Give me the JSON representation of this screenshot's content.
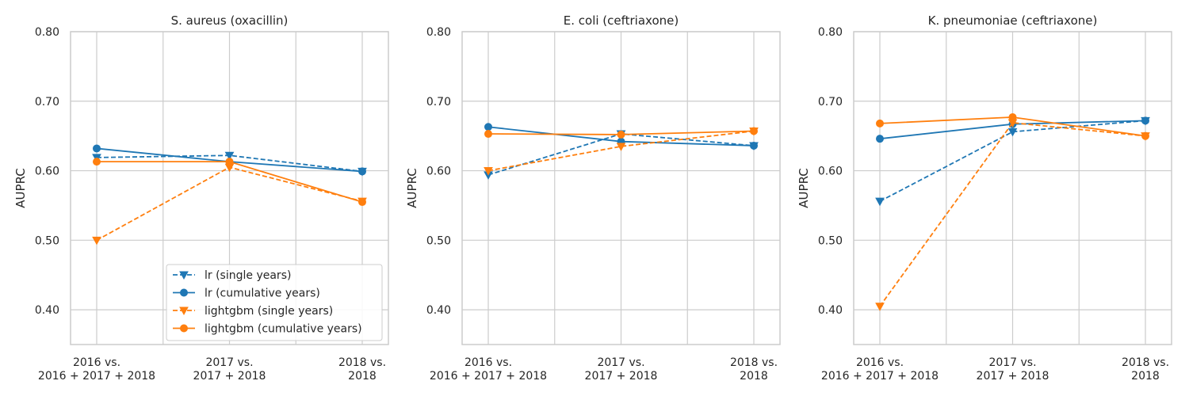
{
  "chart_data": [
    {
      "type": "line",
      "title": "S. aureus (oxacillin)",
      "ylabel": "AUPRC",
      "xlabel": "",
      "categories": [
        [
          "2016 vs.",
          "2016 + 2017 + 2018"
        ],
        [
          "2017 vs.",
          "2017 + 2018"
        ],
        [
          "2018 vs.",
          "2018"
        ]
      ],
      "ylim": [
        0.35,
        0.8
      ],
      "yticks": [
        "0.40",
        "0.50",
        "0.60",
        "0.70",
        "0.80"
      ],
      "grid": true,
      "legend": "lower-right",
      "series": [
        {
          "name": "lr (single years)",
          "values": [
            0.619,
            0.622,
            0.599
          ],
          "color": "#1f77b4",
          "dash": true,
          "marker": "triangle-down"
        },
        {
          "name": "lr (cumulative years)",
          "values": [
            0.632,
            0.613,
            0.599
          ],
          "color": "#1f77b4",
          "dash": false,
          "marker": "circle"
        },
        {
          "name": "lightgbm (single years)",
          "values": [
            0.5,
            0.605,
            0.556
          ],
          "color": "#ff7f0e",
          "dash": true,
          "marker": "triangle-down"
        },
        {
          "name": "lightgbm (cumulative years)",
          "values": [
            0.613,
            0.613,
            0.555
          ],
          "color": "#ff7f0e",
          "dash": false,
          "marker": "circle"
        }
      ]
    },
    {
      "type": "line",
      "title": "E. coli (ceftriaxone)",
      "ylabel": "AUPRC",
      "xlabel": "",
      "categories": [
        [
          "2016 vs.",
          "2016 + 2017 + 2018"
        ],
        [
          "2017 vs.",
          "2017 + 2018"
        ],
        [
          "2018 vs.",
          "2018"
        ]
      ],
      "ylim": [
        0.35,
        0.8
      ],
      "yticks": [
        "0.40",
        "0.50",
        "0.60",
        "0.70",
        "0.80"
      ],
      "grid": true,
      "series": [
        {
          "name": "lr (single years)",
          "values": [
            0.594,
            0.653,
            0.636
          ],
          "color": "#1f77b4",
          "dash": true,
          "marker": "triangle-down"
        },
        {
          "name": "lr (cumulative years)",
          "values": [
            0.663,
            0.642,
            0.636
          ],
          "color": "#1f77b4",
          "dash": false,
          "marker": "circle"
        },
        {
          "name": "lightgbm (single years)",
          "values": [
            0.6,
            0.635,
            0.657
          ],
          "color": "#ff7f0e",
          "dash": true,
          "marker": "triangle-down"
        },
        {
          "name": "lightgbm (cumulative years)",
          "values": [
            0.653,
            0.652,
            0.657
          ],
          "color": "#ff7f0e",
          "dash": false,
          "marker": "circle"
        }
      ]
    },
    {
      "type": "line",
      "title": "K. pneumoniae (ceftriaxone)",
      "ylabel": "AUPRC",
      "xlabel": "",
      "categories": [
        [
          "2016 vs.",
          "2016 + 2017 + 2018"
        ],
        [
          "2017 vs.",
          "2017 + 2018"
        ],
        [
          "2018 vs.",
          "2018"
        ]
      ],
      "ylim": [
        0.35,
        0.8
      ],
      "yticks": [
        "0.40",
        "0.50",
        "0.60",
        "0.70",
        "0.80"
      ],
      "grid": true,
      "series": [
        {
          "name": "lr (single years)",
          "values": [
            0.556,
            0.656,
            0.672
          ],
          "color": "#1f77b4",
          "dash": true,
          "marker": "triangle-down"
        },
        {
          "name": "lr (cumulative years)",
          "values": [
            0.646,
            0.667,
            0.672
          ],
          "color": "#1f77b4",
          "dash": false,
          "marker": "circle"
        },
        {
          "name": "lightgbm (single years)",
          "values": [
            0.405,
            0.669,
            0.65
          ],
          "color": "#ff7f0e",
          "dash": true,
          "marker": "triangle-down"
        },
        {
          "name": "lightgbm (cumulative years)",
          "values": [
            0.668,
            0.677,
            0.65
          ],
          "color": "#ff7f0e",
          "dash": false,
          "marker": "circle"
        }
      ]
    }
  ]
}
